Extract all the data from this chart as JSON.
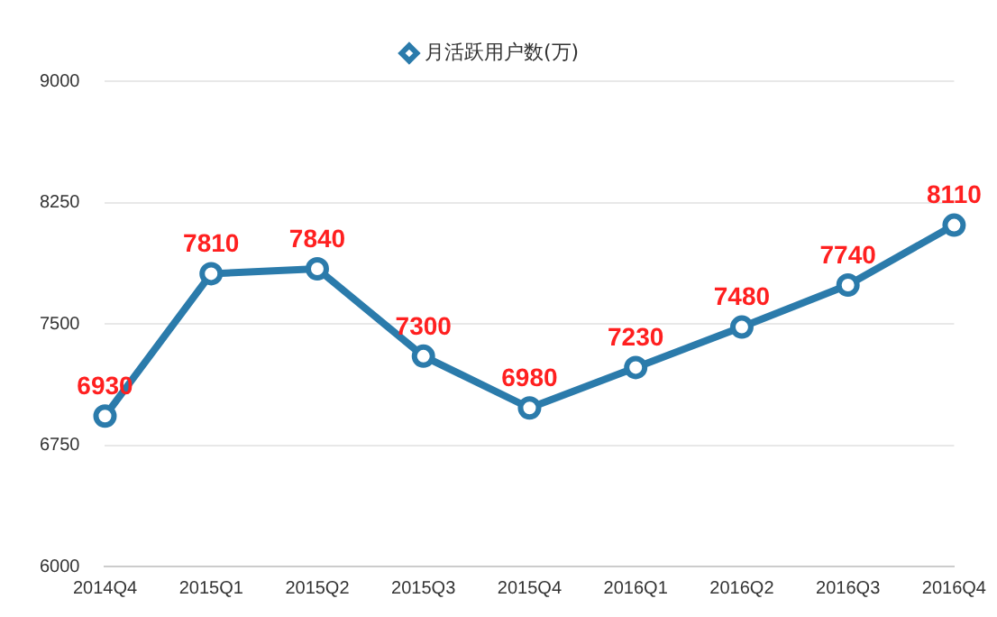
{
  "chart_data": {
    "type": "line",
    "categories": [
      "2014Q4",
      "2015Q1",
      "2015Q2",
      "2015Q3",
      "2015Q4",
      "2016Q1",
      "2016Q2",
      "2016Q3",
      "2016Q4"
    ],
    "series": [
      {
        "name": "月活跃用户数(万)",
        "color": "#2b7bab",
        "values": [
          6930,
          7810,
          7840,
          7300,
          6980,
          7230,
          7480,
          7740,
          8110
        ]
      }
    ],
    "ylim": [
      6000,
      9000
    ],
    "yticks": [
      6000,
      6750,
      7500,
      8250,
      9000
    ],
    "grid": "y",
    "legend": "top",
    "marker": "circle",
    "line_style": "solid",
    "data_labels": true
  }
}
